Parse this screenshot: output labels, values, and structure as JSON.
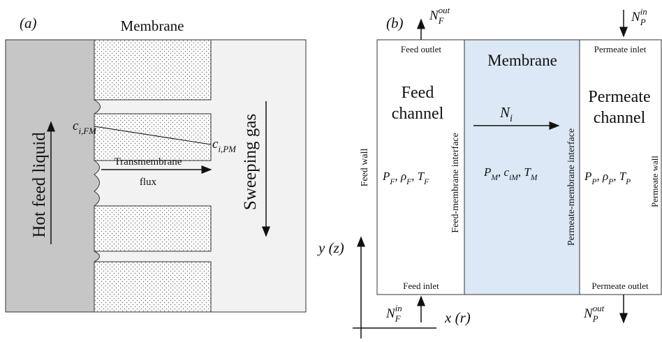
{
  "panel_a": {
    "label": "(a)",
    "membrane": "Membrane",
    "feed": "Hot feed liquid",
    "c_fm": [
      {
        "text": "c"
      },
      {
        "sub": "i,FM"
      }
    ],
    "c_pm": [
      {
        "text": "c"
      },
      {
        "sub": "i,PM"
      }
    ],
    "flux_line1": "Transmembrane",
    "flux_line2": "flux",
    "sweep": "Sweeping gas"
  },
  "panel_b": {
    "label": "(b)",
    "n_f_out": [
      {
        "text": "N"
      },
      {
        "sub": "F"
      },
      {
        "sup": "out"
      }
    ],
    "n_p_in": [
      {
        "text": "N"
      },
      {
        "sub": "P"
      },
      {
        "sup": "in"
      }
    ],
    "feed_outlet": "Feed outlet",
    "membrane": "Membrane",
    "permeate_inlet": "Permeate inlet",
    "feed_channel": [
      "Feed",
      "channel"
    ],
    "permeate_channel": [
      "Permeate",
      "channel"
    ],
    "n_i": [
      {
        "text": "N"
      },
      {
        "sub": "i"
      }
    ],
    "feed_wall": "Feed wall",
    "feed_interface": "Feed-membrane interface",
    "permeate_interface": "Permeate-membrane interface",
    "permeate_wall": "Permeate wall",
    "props_feed": [
      {
        "text": "P"
      },
      {
        "sub": "F"
      },
      {
        "text": ", ρ"
      },
      {
        "sub": "F"
      },
      {
        "text": ", T"
      },
      {
        "sub": "F"
      }
    ],
    "props_membrane": [
      {
        "text": "P"
      },
      {
        "sub": "M"
      },
      {
        "text": ", c"
      },
      {
        "sub": "iM"
      },
      {
        "text": ", T"
      },
      {
        "sub": "M"
      }
    ],
    "props_permeate": [
      {
        "text": "P"
      },
      {
        "sub": "P"
      },
      {
        "text": ", ρ"
      },
      {
        "sub": "P"
      },
      {
        "text": ", T"
      },
      {
        "sub": "P"
      }
    ],
    "y_axis": "y (z)",
    "x_axis": "x (r)",
    "feed_inlet": "Feed inlet",
    "permeate_outlet": "Permeate outlet",
    "n_f_in": [
      {
        "text": "N"
      },
      {
        "sub": "F"
      },
      {
        "sup": "in"
      }
    ],
    "n_p_out": [
      {
        "text": "N"
      },
      {
        "sub": "P"
      },
      {
        "sup": "out"
      }
    ]
  }
}
